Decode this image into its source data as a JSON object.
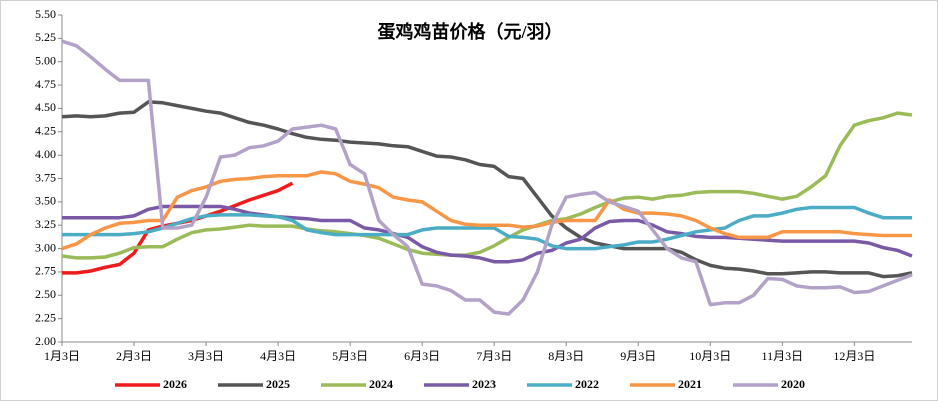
{
  "chart_data": {
    "type": "line",
    "title": "蛋鸡鸡苗价格（元/羽）",
    "categories": [
      "1月3日",
      null,
      null,
      null,
      null,
      "2月3日",
      null,
      null,
      null,
      null,
      "3月3日",
      null,
      null,
      null,
      null,
      "4月3日",
      null,
      null,
      null,
      null,
      "5月3日",
      null,
      null,
      null,
      null,
      "6月3日",
      null,
      null,
      null,
      null,
      "7月3日",
      null,
      null,
      null,
      null,
      "8月3日",
      null,
      null,
      null,
      null,
      "9月3日",
      null,
      null,
      null,
      null,
      "10月3日",
      null,
      null,
      null,
      null,
      "11月3日",
      null,
      null,
      null,
      null,
      "12月3日",
      null,
      null,
      null,
      null
    ],
    "ylim": [
      2.0,
      5.5
    ],
    "yticks": [
      {
        "value": 2.0,
        "label": "2.00"
      },
      {
        "value": 2.25,
        "label": "2.25"
      },
      {
        "value": 2.5,
        "label": "2.50"
      },
      {
        "value": 2.75,
        "label": "2.75"
      },
      {
        "value": 3.0,
        "label": "3.00"
      },
      {
        "value": 3.25,
        "label": "3.25"
      },
      {
        "value": 3.5,
        "label": "3.50"
      },
      {
        "value": 3.75,
        "label": "3.75"
      },
      {
        "value": 4.0,
        "label": "4.00"
      },
      {
        "value": 4.25,
        "label": "4.25"
      },
      {
        "value": 4.5,
        "label": "4.50"
      },
      {
        "value": 4.75,
        "label": "4.75"
      },
      {
        "value": 5.0,
        "label": "5.00"
      },
      {
        "value": 5.25,
        "label": "5.25"
      },
      {
        "value": 5.5,
        "label": "5.50"
      }
    ],
    "legend": "bottom",
    "series": [
      {
        "name": "2026",
        "color": "#ee1c1c",
        "values": [
          2.74,
          2.74,
          2.76,
          2.8,
          2.83,
          2.95,
          3.2,
          3.24,
          3.27,
          3.3,
          3.35,
          3.4,
          3.46,
          3.52,
          3.57,
          3.62,
          3.7,
          null,
          null,
          null,
          null,
          null,
          null,
          null,
          null,
          null,
          null,
          null,
          null,
          null,
          null,
          null,
          null,
          null,
          null,
          null,
          null,
          null,
          null,
          null,
          null,
          null,
          null,
          null,
          null,
          null,
          null,
          null,
          null,
          null,
          null,
          null,
          null,
          null,
          null,
          null,
          null,
          null,
          null,
          null
        ]
      },
      {
        "name": "2025",
        "color": "#555555",
        "values": [
          4.41,
          4.42,
          4.41,
          4.42,
          4.45,
          4.46,
          4.57,
          4.56,
          4.53,
          4.5,
          4.47,
          4.45,
          4.4,
          4.35,
          4.32,
          4.28,
          4.23,
          4.19,
          4.17,
          4.16,
          4.14,
          4.13,
          4.12,
          4.1,
          4.09,
          4.04,
          3.99,
          3.98,
          3.95,
          3.9,
          3.88,
          3.77,
          3.75,
          3.55,
          3.35,
          3.22,
          3.12,
          3.06,
          3.03,
          3.0,
          3.0,
          3.0,
          3.0,
          2.96,
          2.88,
          2.82,
          2.79,
          2.78,
          2.76,
          2.73,
          2.73,
          2.74,
          2.75,
          2.75,
          2.74,
          2.74,
          2.74,
          2.7,
          2.71,
          2.74
        ]
      },
      {
        "name": "2024",
        "color": "#9bbb59",
        "values": [
          2.92,
          2.9,
          2.9,
          2.91,
          2.95,
          3.01,
          3.02,
          3.02,
          3.1,
          3.17,
          3.2,
          3.21,
          3.23,
          3.25,
          3.24,
          3.24,
          3.24,
          3.21,
          3.19,
          3.18,
          3.16,
          3.14,
          3.11,
          3.05,
          2.99,
          2.95,
          2.94,
          2.93,
          2.93,
          2.96,
          3.03,
          3.12,
          3.2,
          3.25,
          3.3,
          3.32,
          3.37,
          3.44,
          3.5,
          3.54,
          3.55,
          3.53,
          3.56,
          3.57,
          3.6,
          3.61,
          3.61,
          3.61,
          3.59,
          3.56,
          3.53,
          3.56,
          3.66,
          3.78,
          4.1,
          4.32,
          4.37,
          4.4,
          4.45,
          4.43
        ]
      },
      {
        "name": "2023",
        "color": "#7a5aa6",
        "values": [
          3.33,
          3.33,
          3.33,
          3.33,
          3.33,
          3.35,
          3.42,
          3.45,
          3.45,
          3.45,
          3.45,
          3.45,
          3.42,
          3.38,
          3.36,
          3.34,
          3.33,
          3.32,
          3.3,
          3.3,
          3.3,
          3.22,
          3.2,
          3.16,
          3.12,
          3.02,
          2.96,
          2.93,
          2.92,
          2.9,
          2.86,
          2.86,
          2.88,
          2.95,
          2.98,
          3.06,
          3.1,
          3.22,
          3.29,
          3.3,
          3.3,
          3.25,
          3.18,
          3.16,
          3.13,
          3.12,
          3.12,
          3.11,
          3.1,
          3.09,
          3.08,
          3.08,
          3.08,
          3.08,
          3.08,
          3.08,
          3.06,
          3.01,
          2.98,
          2.92
        ]
      },
      {
        "name": "2022",
        "color": "#4bacc6",
        "values": [
          3.15,
          3.15,
          3.15,
          3.15,
          3.15,
          3.16,
          3.18,
          3.22,
          3.27,
          3.32,
          3.35,
          3.36,
          3.36,
          3.36,
          3.35,
          3.34,
          3.3,
          3.2,
          3.17,
          3.15,
          3.15,
          3.15,
          3.15,
          3.15,
          3.15,
          3.2,
          3.22,
          3.22,
          3.22,
          3.22,
          3.22,
          3.13,
          3.12,
          3.1,
          3.03,
          3.0,
          3.0,
          3.0,
          3.02,
          3.04,
          3.07,
          3.07,
          3.1,
          3.14,
          3.18,
          3.2,
          3.22,
          3.3,
          3.35,
          3.35,
          3.38,
          3.42,
          3.44,
          3.44,
          3.44,
          3.44,
          3.38,
          3.33,
          3.33,
          3.33
        ]
      },
      {
        "name": "2021",
        "color": "#f79646",
        "values": [
          3.0,
          3.05,
          3.15,
          3.22,
          3.27,
          3.28,
          3.3,
          3.3,
          3.55,
          3.62,
          3.66,
          3.72,
          3.74,
          3.75,
          3.77,
          3.78,
          3.78,
          3.78,
          3.82,
          3.8,
          3.72,
          3.69,
          3.65,
          3.55,
          3.52,
          3.5,
          3.4,
          3.3,
          3.26,
          3.25,
          3.25,
          3.25,
          3.23,
          3.24,
          3.28,
          3.3,
          3.3,
          3.3,
          3.52,
          3.42,
          3.38,
          3.38,
          3.37,
          3.35,
          3.3,
          3.22,
          3.16,
          3.12,
          3.12,
          3.12,
          3.18,
          3.18,
          3.18,
          3.18,
          3.18,
          3.16,
          3.15,
          3.14,
          3.14,
          3.14
        ]
      },
      {
        "name": "2020",
        "color": "#b3a2c7",
        "values": [
          5.22,
          5.17,
          5.05,
          4.92,
          4.8,
          4.8,
          4.8,
          3.22,
          3.22,
          3.25,
          3.55,
          3.98,
          4.0,
          4.08,
          4.1,
          4.15,
          4.28,
          4.3,
          4.32,
          4.28,
          3.9,
          3.8,
          3.3,
          3.15,
          3.02,
          2.62,
          2.6,
          2.55,
          2.45,
          2.45,
          2.32,
          2.3,
          2.45,
          2.75,
          3.25,
          3.55,
          3.58,
          3.6,
          3.5,
          3.45,
          3.4,
          3.2,
          3.0,
          2.9,
          2.86,
          2.4,
          2.42,
          2.42,
          2.5,
          2.68,
          2.67,
          2.6,
          2.58,
          2.58,
          2.59,
          2.53,
          2.54,
          2.6,
          2.66,
          2.72
        ]
      }
    ]
  }
}
